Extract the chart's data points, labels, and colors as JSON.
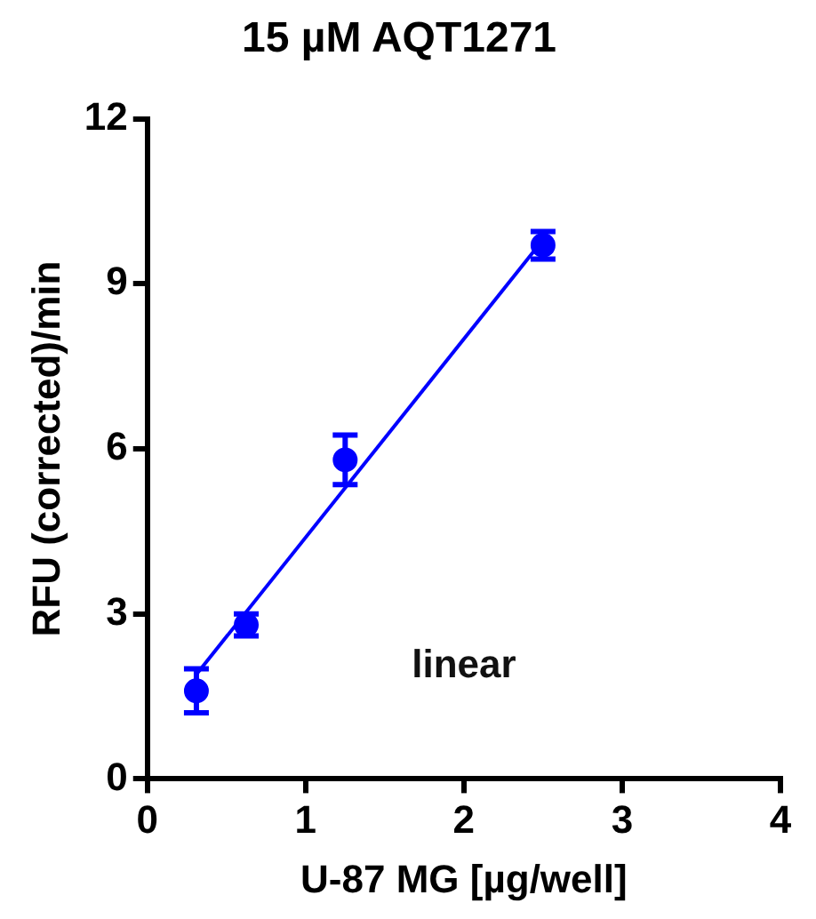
{
  "chart_data": {
    "type": "scatter",
    "title": "15 µM AQT1271",
    "xlabel": "U-87 MG [µg/well]",
    "ylabel": "RFU (corrected)/min",
    "xlim": [
      0,
      4
    ],
    "xticks": [
      0,
      1,
      2,
      3,
      4
    ],
    "ylim": [
      0,
      12
    ],
    "yticks": [
      0,
      3,
      6,
      9,
      12
    ],
    "grid": false,
    "legend": false,
    "marker": "circle",
    "annotations": [
      "linear"
    ],
    "series": [
      {
        "color": "#0000ff",
        "x": [
          0.31,
          0.625,
          1.25,
          2.5
        ],
        "values": [
          1.6,
          2.8,
          5.8,
          9.7
        ],
        "errors": [
          0.4,
          0.2,
          0.45,
          0.25
        ]
      },
      {
        "type": "line",
        "color": "#0000ff",
        "x": [
          0.31,
          2.5
        ],
        "values": [
          1.9,
          9.8
        ],
        "marker": "none"
      }
    ]
  }
}
